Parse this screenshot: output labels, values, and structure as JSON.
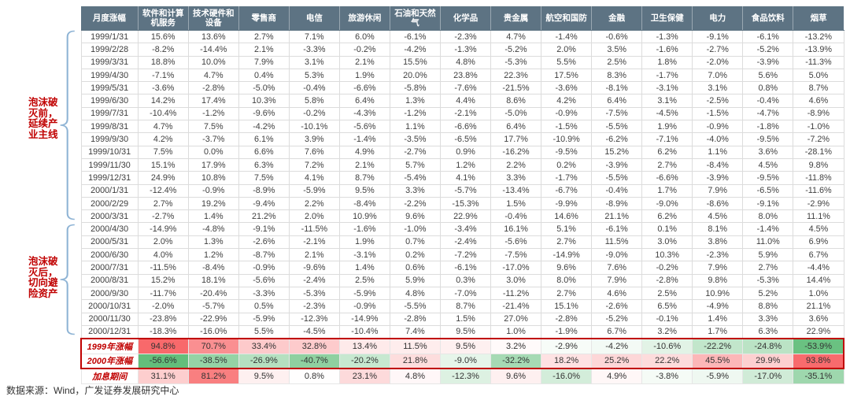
{
  "chart_data": {
    "type": "heatmap",
    "title": "",
    "value_format": "percent_1dp",
    "columns": [
      "月度涨幅",
      "软件和计算机服务",
      "技术硬件和设备",
      "零售商",
      "电信",
      "旅游休闲",
      "石油和天然气",
      "化学品",
      "贵金属",
      "航空和国防",
      "金融",
      "卫生保健",
      "电力",
      "食品饮料",
      "烟草"
    ],
    "rows": [
      {
        "label": "1999/1/31",
        "values": [
          15.6,
          13.6,
          2.7,
          7.1,
          6.0,
          -6.1,
          -2.3,
          4.7,
          -1.4,
          -0.6,
          -1.3,
          -9.1,
          -6.1,
          -13.2
        ]
      },
      {
        "label": "1999/2/28",
        "values": [
          -8.2,
          -14.4,
          2.1,
          -3.3,
          -0.2,
          -4.2,
          -1.3,
          -5.2,
          2.0,
          3.5,
          -1.6,
          -2.7,
          -5.2,
          -13.9
        ]
      },
      {
        "label": "1999/3/31",
        "values": [
          18.8,
          10.0,
          7.9,
          3.1,
          2.1,
          15.5,
          4.8,
          -5.3,
          5.5,
          2.5,
          1.8,
          -2.0,
          -3.9,
          -11.3
        ]
      },
      {
        "label": "1999/4/30",
        "values": [
          -7.1,
          4.7,
          0.4,
          5.3,
          1.9,
          20.0,
          23.8,
          22.3,
          17.5,
          8.3,
          -1.7,
          7.0,
          5.6,
          5.0
        ]
      },
      {
        "label": "1999/5/31",
        "values": [
          -3.6,
          -2.8,
          -5.0,
          -0.4,
          -6.6,
          -5.8,
          -7.6,
          -21.5,
          -3.6,
          -8.1,
          -3.1,
          3.1,
          0.8,
          8.7
        ]
      },
      {
        "label": "1999/6/30",
        "values": [
          14.2,
          17.4,
          10.3,
          5.8,
          6.4,
          1.3,
          4.4,
          8.6,
          4.2,
          6.4,
          3.1,
          -2.5,
          -0.4,
          4.6
        ]
      },
      {
        "label": "1999/7/31",
        "values": [
          -10.4,
          -1.2,
          -9.6,
          -0.2,
          -4.3,
          -1.2,
          -2.1,
          -5.0,
          -0.9,
          -7.5,
          -4.5,
          -1.5,
          -4.7,
          -8.9
        ]
      },
      {
        "label": "1999/8/31",
        "values": [
          4.7,
          7.5,
          -4.2,
          -10.1,
          -5.6,
          1.1,
          -6.6,
          6.4,
          -1.5,
          -5.5,
          1.9,
          -0.9,
          -1.8,
          -1.0
        ]
      },
      {
        "label": "1999/9/30",
        "values": [
          4.2,
          -3.7,
          6.1,
          3.9,
          -1.4,
          -3.5,
          -6.5,
          17.7,
          -10.9,
          -6.2,
          -7.1,
          -4.0,
          -9.5,
          -7.2
        ]
      },
      {
        "label": "1999/10/31",
        "values": [
          7.5,
          0.0,
          6.6,
          7.6,
          4.9,
          -2.7,
          0.9,
          -16.2,
          -9.5,
          15.2,
          6.2,
          1.1,
          3.6,
          -28.1
        ]
      },
      {
        "label": "1999/11/30",
        "values": [
          15.1,
          17.9,
          6.3,
          7.2,
          2.1,
          5.7,
          1.2,
          2.2,
          0.2,
          -3.9,
          2.7,
          -8.4,
          4.5,
          9.8
        ]
      },
      {
        "label": "1999/12/31",
        "values": [
          24.9,
          10.8,
          7.5,
          4.1,
          8.7,
          -5.4,
          4.1,
          3.3,
          -1.7,
          -5.5,
          -6.6,
          -3.9,
          -9.5,
          -11.8
        ]
      },
      {
        "label": "2000/1/31",
        "values": [
          -12.4,
          -0.9,
          -8.9,
          -5.9,
          9.5,
          3.3,
          -5.7,
          -13.4,
          -6.7,
          -0.4,
          1.7,
          7.9,
          -6.5,
          -11.6
        ]
      },
      {
        "label": "2000/2/29",
        "values": [
          2.7,
          19.2,
          -9.4,
          2.2,
          -8.4,
          -2.2,
          -15.3,
          1.5,
          -9.9,
          -8.9,
          -9.0,
          -8.6,
          -9.1,
          -2.9
        ]
      },
      {
        "label": "2000/3/31",
        "values": [
          -2.7,
          1.4,
          21.2,
          2.0,
          10.9,
          9.6,
          22.9,
          -0.4,
          14.6,
          21.1,
          6.2,
          4.5,
          8.0,
          11.1
        ]
      },
      {
        "label": "2000/4/30",
        "values": [
          -14.9,
          -4.8,
          -9.1,
          -11.5,
          -1.6,
          -1.0,
          -3.4,
          16.1,
          5.1,
          -6.1,
          0.1,
          8.1,
          -1.4,
          4.5
        ]
      },
      {
        "label": "2000/5/31",
        "values": [
          2.0,
          1.3,
          -2.6,
          -2.1,
          1.9,
          0.7,
          -2.4,
          -5.6,
          2.7,
          11.5,
          3.0,
          3.8,
          11.0,
          6.9
        ]
      },
      {
        "label": "2000/6/30",
        "values": [
          4.0,
          1.2,
          -8.7,
          2.1,
          -3.1,
          0.2,
          -7.2,
          -7.5,
          -14.9,
          -9.0,
          10.3,
          -2.3,
          5.9,
          6.7
        ]
      },
      {
        "label": "2000/7/31",
        "values": [
          -11.5,
          -8.4,
          -0.9,
          -9.6,
          1.4,
          0.6,
          -6.1,
          -17.0,
          9.6,
          7.6,
          -0.2,
          7.9,
          2.7,
          -4.4
        ]
      },
      {
        "label": "2000/8/31",
        "values": [
          15.2,
          18.1,
          -5.6,
          -2.4,
          2.5,
          5.9,
          0.3,
          3.0,
          8.0,
          7.9,
          -2.8,
          9.8,
          -5.3,
          14.4
        ]
      },
      {
        "label": "2000/9/30",
        "values": [
          -11.7,
          -20.4,
          -3.3,
          -5.3,
          -5.9,
          4.8,
          -7.0,
          -11.2,
          2.7,
          4.6,
          2.5,
          10.9,
          5.2,
          1.0
        ]
      },
      {
        "label": "2000/10/31",
        "values": [
          -2.0,
          -5.7,
          0.5,
          -2.3,
          -0.9,
          -5.5,
          8.7,
          -21.4,
          15.1,
          -2.6,
          6.5,
          -4.9,
          8.8,
          21.1
        ]
      },
      {
        "label": "2000/11/30",
        "values": [
          -23.8,
          -22.9,
          -5.9,
          -12.3,
          -14.9,
          -2.8,
          1.5,
          27.0,
          -2.8,
          -5.2,
          -0.1,
          1.4,
          3.3,
          3.6
        ]
      },
      {
        "label": "2000/12/31",
        "values": [
          -18.3,
          -16.0,
          5.5,
          -4.5,
          -10.4,
          7.4,
          9.5,
          1.0,
          -1.9,
          6.7,
          3.2,
          1.7,
          6.3,
          22.9
        ]
      }
    ],
    "summary_rows": [
      {
        "label": "1999年涨幅",
        "boxed": true,
        "values": [
          94.8,
          70.7,
          33.4,
          32.8,
          13.4,
          11.5,
          9.5,
          3.2,
          -2.9,
          -4.2,
          -10.6,
          -22.2,
          -24.8,
          -53.9
        ]
      },
      {
        "label": "2000年涨幅",
        "boxed": true,
        "values": [
          -56.6,
          -38.5,
          -26.9,
          -40.7,
          -20.2,
          21.8,
          -9.0,
          -32.2,
          18.2,
          25.2,
          22.2,
          45.5,
          29.9,
          93.8
        ]
      },
      {
        "label": "加息期间",
        "boxed": false,
        "values": [
          31.1,
          81.2,
          9.5,
          0.8,
          23.1,
          4.8,
          -12.3,
          9.6,
          -16.0,
          4.9,
          -3.8,
          -5.9,
          -17.0,
          -35.1
        ]
      }
    ],
    "color_scale": {
      "positive_full": "#f8696b",
      "negative_full": "#63be7b",
      "positive_max": 94.8,
      "negative_max": 56.6
    },
    "legend_position": "none",
    "grid": true
  },
  "annotations": {
    "before_bubble": "泡沫破灭前，延续产业主线",
    "after_bubble": "泡沫破灭后，切向避险资产"
  },
  "footer": {
    "source": "数据来源：Wind，广发证券发展研究中心"
  },
  "colors": {
    "header_bg": "#5d7383",
    "annotation_red": "#c00000",
    "box_border_red": "#c00000",
    "brace_blue": "#8fb4d5",
    "positive_full": "#f8696b",
    "negative_full": "#63be7b"
  }
}
